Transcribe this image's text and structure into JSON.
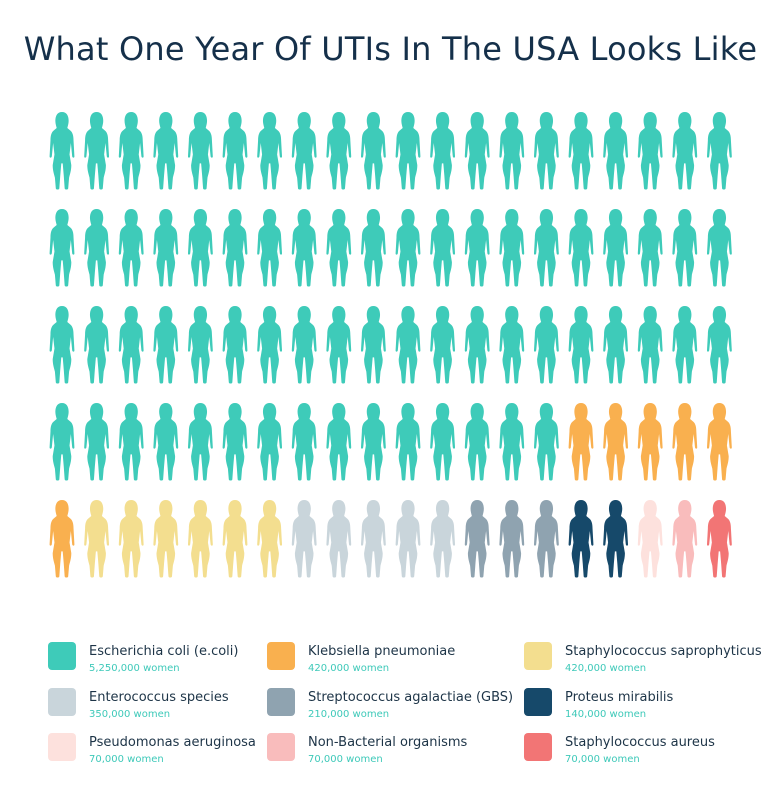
{
  "chart_data": {
    "type": "pictogram",
    "title": "What One Year Of UTIs In The USA Looks Like",
    "unit_label": "women",
    "categories": [
      {
        "name": "Escherichia coli (e.coli)",
        "value_label": "5,250,000",
        "count": 75,
        "color": "#3ecbb9"
      },
      {
        "name": "Klebsiella pneumoniae",
        "value_label": "420,000",
        "count": 6,
        "color": "#f9b04f"
      },
      {
        "name": "Staphylococcus saprophyticus",
        "value_label": "420,000",
        "count": 6,
        "color": "#f3de8f"
      },
      {
        "name": "Enterococcus species",
        "value_label": "350,000",
        "count": 5,
        "color": "#c9d5db"
      },
      {
        "name": "Streptococcus agalactiae (GBS)",
        "value_label": "210,000",
        "count": 3,
        "color": "#8fa3b0"
      },
      {
        "name": "Proteus mirabilis",
        "value_label": "140,000",
        "count": 2,
        "color": "#16496a"
      },
      {
        "name": "Pseudomonas aeruginosa",
        "value_label": "70,000",
        "count": 1,
        "color": "#fde1dd"
      },
      {
        "name": "Non-Bacterial organisms",
        "value_label": "70,000",
        "count": 1,
        "color": "#f9bcbc"
      },
      {
        "name": "Staphylococcus aureus",
        "value_label": "70,000",
        "count": 1,
        "color": "#f27575"
      }
    ]
  }
}
